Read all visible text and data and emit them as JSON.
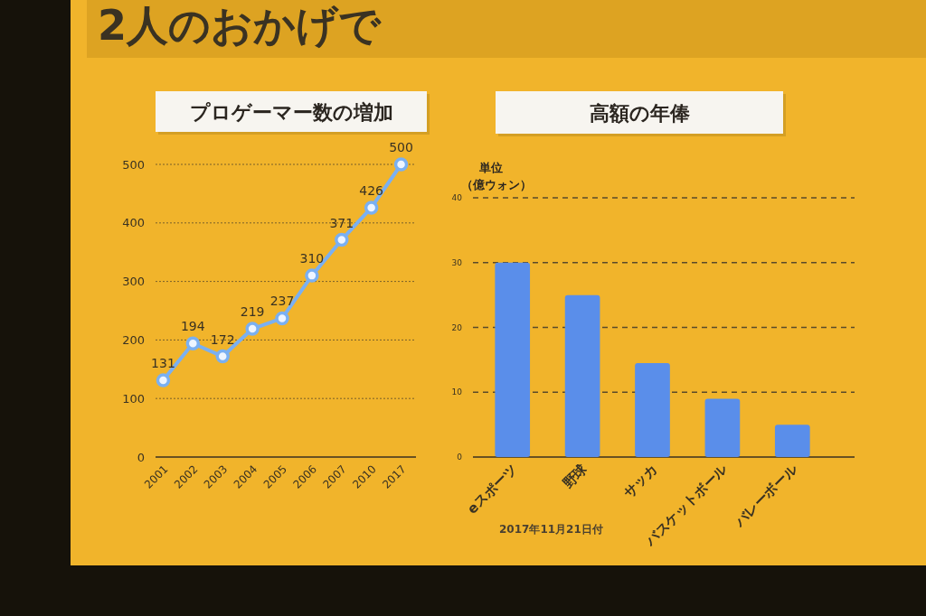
{
  "chart_data": [
    {
      "type": "other",
      "title": "2人のおかげで"
    },
    {
      "type": "line",
      "title": "プロゲーマー数の増加",
      "categories": [
        "2001",
        "2002",
        "2003",
        "2004",
        "2005",
        "2006",
        "2007",
        "2010",
        "2017"
      ],
      "values": [
        131,
        194,
        172,
        219,
        237,
        310,
        371,
        426,
        500
      ],
      "color": "#7ab0f2",
      "marker": "circle",
      "ylim": [
        0,
        500
      ],
      "yticks": [
        0,
        100,
        200,
        300,
        400,
        500
      ],
      "grid": "y",
      "data_labels": true
    },
    {
      "type": "bar",
      "title": "高額の年俸",
      "ylabel": "単位（億ウォン）",
      "categories": [
        "eスポーツ",
        "野球",
        "サッカ",
        "バスケットボール",
        "バレーボール"
      ],
      "values": [
        30,
        25,
        14.5,
        9,
        5
      ],
      "color": "#5a8eea",
      "ylim": [
        0,
        40
      ],
      "yticks": [
        0,
        10,
        20,
        30,
        40
      ],
      "grid": "y",
      "annotations": [
        "2017年11月21日付"
      ]
    }
  ]
}
